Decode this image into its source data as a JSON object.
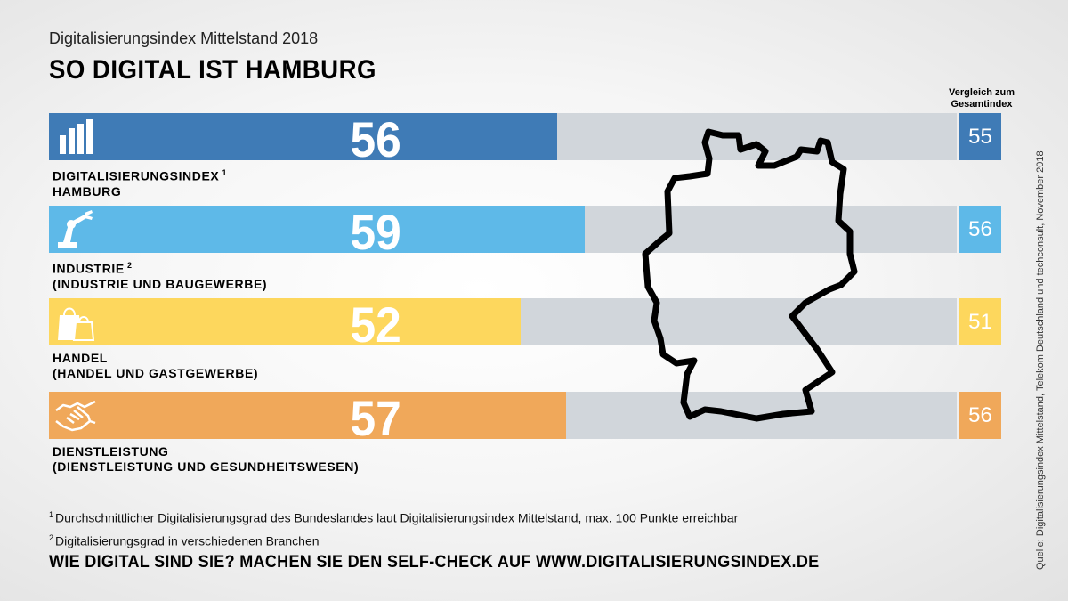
{
  "header": {
    "subtitle": "Digitalisierungsindex Mittelstand 2018",
    "title": "SO DIGITAL IST HAMBURG"
  },
  "compare_header": "Vergleich zum Gesamtindex",
  "colors": {
    "track": "#d1d6db",
    "digitalisierungsindex": "#3f7bb6",
    "industrie": "#5eb9e8",
    "handel": "#fdd75d",
    "dienstleistung": "#f0a85a"
  },
  "chart_data": {
    "type": "bar",
    "orientation": "horizontal",
    "ylim": [
      0,
      100
    ],
    "series": [
      {
        "name": "Hamburg",
        "values": [
          56,
          59,
          52,
          57
        ]
      },
      {
        "name": "Vergleich zum Gesamtindex",
        "values": [
          55,
          56,
          51,
          56
        ]
      }
    ],
    "categories": [
      "Digitalisierungsindex Hamburg",
      "Industrie (Industrie und Baugewerbe)",
      "Handel (Handel und Gastgewerbe)",
      "Dienstleistung (Dienstleistung und Gesundheitswesen)"
    ]
  },
  "rows": [
    {
      "value": "56",
      "compare": "55",
      "line1": "Digitalisierungsindex",
      "sup": "1",
      "line2": "Hamburg",
      "icon": "bar-chart-icon",
      "color": "#3f7bb6",
      "compare_text_color": "#ffffff"
    },
    {
      "value": "59",
      "compare": "56",
      "line1": "Industrie",
      "sup": "2",
      "line2": "(Industrie und Baugewerbe)",
      "icon": "robot-arm-icon",
      "color": "#5eb9e8",
      "compare_text_color": "#ffffff"
    },
    {
      "value": "52",
      "compare": "51",
      "line1": "Handel",
      "sup": "",
      "line2": "(Handel und Gastgewerbe)",
      "icon": "shopping-bags-icon",
      "color": "#fdd75d",
      "compare_text_color": "#ffffff"
    },
    {
      "value": "57",
      "compare": "56",
      "line1": "Dienstleistung",
      "sup": "",
      "line2": "(Dienstleistung und Gesundheitswesen)",
      "icon": "handshake-icon",
      "color": "#f0a85a",
      "compare_text_color": "#ffffff"
    }
  ],
  "footnotes": [
    {
      "mark": "1",
      "text": "Durchschnittlicher Digitalisierungsgrad des Bundeslandes laut Digitalisierungsindex Mittelstand, max. 100 Punkte erreichbar"
    },
    {
      "mark": "2",
      "text": "Digitalisierungsgrad in verschiedenen Branchen"
    }
  ],
  "cta": "WIE DIGITAL SIND SIE? MACHEN SIE DEN SELF-CHECK AUF WWW.DIGITALISIERUNGSINDEX.DE",
  "source": "Quelle: Digitalisierungsindex Mittelstand, Telekom Deutschland und techconsult, November 2018",
  "map_icon": "germany-outline-map"
}
